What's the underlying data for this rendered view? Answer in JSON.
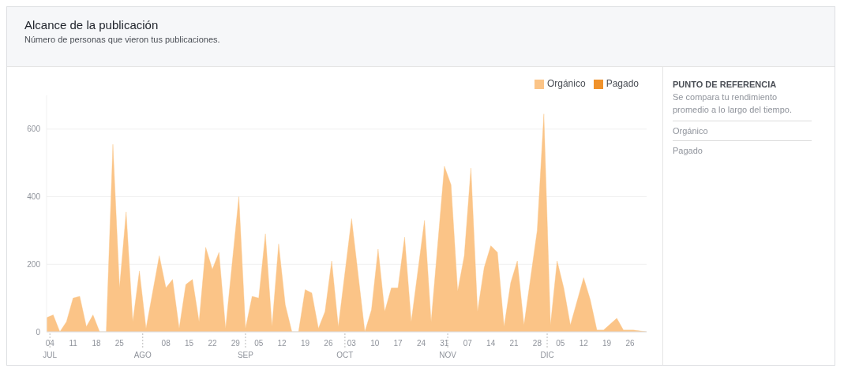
{
  "chart_data": {
    "type": "area",
    "title": "Alcance de la publicación",
    "subtitle": "Número de personas que vieron tus publicaciones.",
    "x": [
      "--07-03",
      "--07-05",
      "--07-07",
      "--07-09",
      "--07-11",
      "--07-13",
      "--07-15",
      "--07-17",
      "--07-19",
      "--07-21",
      "--07-23",
      "--07-25",
      "--07-27",
      "--07-29",
      "--07-31",
      "--08-02",
      "--08-06",
      "--08-08",
      "--08-10",
      "--08-12",
      "--08-14",
      "--08-16",
      "--08-18",
      "--08-20",
      "--08-22",
      "--08-24",
      "--08-26",
      "--08-30",
      "--09-01",
      "--09-03",
      "--09-05",
      "--09-07",
      "--09-09",
      "--09-11",
      "--09-13",
      "--09-15",
      "--09-17",
      "--09-19",
      "--09-21",
      "--09-23",
      "--09-25",
      "--09-27",
      "--09-29",
      "--10-03",
      "--10-07",
      "--10-09",
      "--10-11",
      "--10-13",
      "--10-15",
      "--10-17",
      "--10-19",
      "--10-21",
      "--10-25",
      "--10-27",
      "--10-31",
      "--11-02",
      "--11-04",
      "--11-06",
      "--11-08",
      "--11-10",
      "--11-12",
      "--11-14",
      "--11-16",
      "--11-18",
      "--11-20",
      "--11-22",
      "--11-24",
      "--11-28",
      "--11-30",
      "--12-02",
      "--12-04",
      "--12-06",
      "--12-08",
      "--12-12",
      "--12-14",
      "--12-16",
      "--12-18",
      "--12-22",
      "--12-24",
      "--12-27",
      "--12-31"
    ],
    "series": [
      {
        "name": "Orgánico",
        "color": "#fbc487",
        "values": [
          42,
          50,
          0,
          30,
          100,
          105,
          15,
          50,
          0,
          0,
          555,
          130,
          355,
          30,
          180,
          10,
          225,
          130,
          155,
          10,
          140,
          155,
          30,
          250,
          185,
          235,
          10,
          400,
          10,
          105,
          100,
          290,
          15,
          260,
          80,
          0,
          0,
          125,
          115,
          10,
          60,
          210,
          15,
          335,
          0,
          65,
          245,
          60,
          130,
          130,
          280,
          30,
          330,
          30,
          490,
          435,
          120,
          225,
          485,
          60,
          190,
          255,
          235,
          15,
          145,
          210,
          20,
          300,
          645,
          20,
          210,
          130,
          20,
          160,
          95,
          5,
          5,
          40,
          5,
          5,
          0
        ]
      },
      {
        "name": "Pagado",
        "color": "#f0922b",
        "values": [
          null,
          null,
          null,
          null,
          null,
          null,
          null,
          null,
          null,
          null,
          null,
          null,
          null,
          null,
          null,
          null,
          null,
          null,
          null,
          null,
          null,
          null,
          null,
          null,
          null,
          null,
          null,
          null,
          null,
          null,
          null,
          null,
          null,
          null,
          null,
          null,
          null,
          null,
          null,
          null,
          null,
          null,
          null,
          null,
          null,
          null,
          null,
          null,
          null,
          null,
          null,
          null,
          null,
          null,
          null,
          null,
          null,
          null,
          null,
          null,
          null,
          null,
          null,
          null,
          null,
          null,
          null,
          null,
          null,
          null,
          null,
          null,
          null,
          null,
          null,
          null,
          null,
          null,
          null,
          null,
          null
        ]
      }
    ],
    "xlim": [
      "--07-03",
      "--12-31"
    ],
    "xticks": [
      {
        "value": "--07-04",
        "label": "04"
      },
      {
        "value": "--07-11",
        "label": "11"
      },
      {
        "value": "--07-18",
        "label": "18"
      },
      {
        "value": "--07-25",
        "label": "25"
      },
      {
        "value": "--08-08",
        "label": "08"
      },
      {
        "value": "--08-15",
        "label": "15"
      },
      {
        "value": "--08-22",
        "label": "22"
      },
      {
        "value": "--08-29",
        "label": "29"
      },
      {
        "value": "--09-05",
        "label": "05"
      },
      {
        "value": "--09-12",
        "label": "12"
      },
      {
        "value": "--09-19",
        "label": "19"
      },
      {
        "value": "--09-26",
        "label": "26"
      },
      {
        "value": "--10-03",
        "label": "03"
      },
      {
        "value": "--10-10",
        "label": "10"
      },
      {
        "value": "--10-17",
        "label": "17"
      },
      {
        "value": "--10-24",
        "label": "24"
      },
      {
        "value": "--10-31",
        "label": "31"
      },
      {
        "value": "--11-07",
        "label": "07"
      },
      {
        "value": "--11-14",
        "label": "14"
      },
      {
        "value": "--11-21",
        "label": "21"
      },
      {
        "value": "--11-28",
        "label": "28"
      },
      {
        "value": "--12-05",
        "label": "05"
      },
      {
        "value": "--12-12",
        "label": "12"
      },
      {
        "value": "--12-19",
        "label": "19"
      },
      {
        "value": "--12-26",
        "label": "26"
      }
    ],
    "x2lim": [
      "--07-03",
      "--12-31"
    ],
    "x2ticks": [
      {
        "value": "--07-04",
        "label": "JUL"
      },
      {
        "value": "--08-01",
        "label": "AGO"
      },
      {
        "value": "--09-01",
        "label": "SEP"
      },
      {
        "value": "--10-01",
        "label": "OCT"
      },
      {
        "value": "--11-01",
        "label": "NOV"
      },
      {
        "value": "--12-01",
        "label": "DIC"
      }
    ],
    "ylim": [
      0,
      700
    ],
    "yticks": [
      0,
      200,
      400,
      600
    ],
    "grid": "y",
    "legend": "top right",
    "marker": "none",
    "annotations": [
      "PUNTO DE REFERENCIA",
      "Se compara tu rendimiento promedio a lo largo del tiempo.",
      "Orgánico",
      "Pagado"
    ]
  }
}
